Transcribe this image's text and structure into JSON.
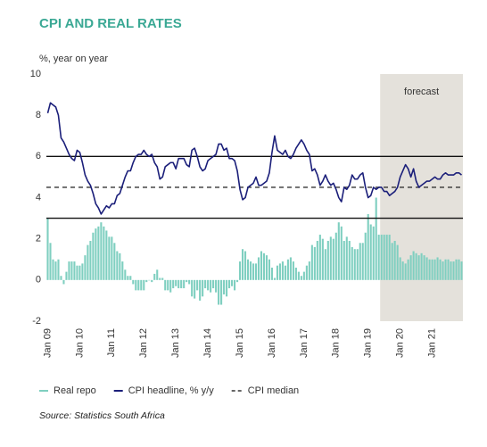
{
  "chart_data": {
    "type": "bar-line",
    "title": "CPI AND REAL RATES",
    "y_label": "%, year on year",
    "source": "Source: Statistics South Africa",
    "ylim": [
      -2,
      10
    ],
    "yticks": [
      -2,
      0,
      2,
      4,
      6,
      8,
      10
    ],
    "categories": [
      "Jan 09",
      null,
      null,
      null,
      null,
      null,
      null,
      null,
      null,
      null,
      null,
      null,
      "Jan 10",
      null,
      null,
      null,
      null,
      null,
      null,
      null,
      null,
      null,
      null,
      null,
      "Jan 11",
      null,
      null,
      null,
      null,
      null,
      null,
      null,
      null,
      null,
      null,
      null,
      "Jan 12",
      null,
      null,
      null,
      null,
      null,
      null,
      null,
      null,
      null,
      null,
      null,
      "Jan 13",
      null,
      null,
      null,
      null,
      null,
      null,
      null,
      null,
      null,
      null,
      null,
      "Jan 14",
      null,
      null,
      null,
      null,
      null,
      null,
      null,
      null,
      null,
      null,
      null,
      "Jan 15",
      null,
      null,
      null,
      null,
      null,
      null,
      null,
      null,
      null,
      null,
      null,
      "Jan 16",
      null,
      null,
      null,
      null,
      null,
      null,
      null,
      null,
      null,
      null,
      null,
      "Jan 17",
      null,
      null,
      null,
      null,
      null,
      null,
      null,
      null,
      null,
      null,
      null,
      "Jan 18",
      null,
      null,
      null,
      null,
      null,
      null,
      null,
      null,
      null,
      null,
      null,
      "Jan 19",
      null,
      null,
      null,
      null,
      null,
      null,
      null,
      null,
      null,
      null,
      null,
      "Jan 20",
      null,
      null,
      null,
      null,
      null,
      null,
      null,
      null,
      null,
      null,
      null,
      "Jan 21",
      null,
      null,
      null,
      null,
      null,
      null,
      null,
      null,
      null,
      null,
      null
    ],
    "series": [
      {
        "name": "Real repo",
        "type": "bar",
        "color": "#7fcfc0",
        "values": [
          3.0,
          1.8,
          1.0,
          0.9,
          1.0,
          0.2,
          -0.2,
          0.4,
          0.9,
          0.9,
          0.9,
          0.7,
          0.7,
          0.8,
          1.2,
          1.7,
          1.9,
          2.3,
          2.5,
          2.6,
          2.8,
          2.6,
          2.4,
          2.1,
          2.1,
          1.8,
          1.4,
          1.3,
          0.9,
          0.5,
          0.2,
          0.2,
          -0.2,
          -0.5,
          -0.5,
          -0.5,
          -0.5,
          -0.1,
          0.0,
          -0.1,
          0.3,
          0.5,
          0.1,
          0.1,
          -0.5,
          -0.5,
          -0.6,
          -0.4,
          -0.3,
          -0.4,
          -0.4,
          -0.4,
          -0.1,
          -0.2,
          -0.8,
          -0.9,
          -0.5,
          -1.0,
          -0.8,
          -0.4,
          -0.5,
          -0.6,
          -0.4,
          -0.6,
          -1.2,
          -1.2,
          -0.7,
          -0.8,
          -0.4,
          -0.3,
          -0.5,
          -0.1,
          0.9,
          1.5,
          1.4,
          1.0,
          0.9,
          0.8,
          0.8,
          1.1,
          1.4,
          1.3,
          1.2,
          1.0,
          0.6,
          0.1,
          0.7,
          0.8,
          0.9,
          0.7,
          1.0,
          1.1,
          0.9,
          0.6,
          0.4,
          0.2,
          0.4,
          0.7,
          0.9,
          1.7,
          1.6,
          1.9,
          2.2,
          2.0,
          1.5,
          1.9,
          2.1,
          2.0,
          2.3,
          2.8,
          2.6,
          1.9,
          2.1,
          1.9,
          1.6,
          1.5,
          1.5,
          1.8,
          1.8,
          2.3,
          3.2,
          2.7,
          2.6,
          4.0,
          2.2,
          2.2,
          2.2,
          2.2,
          2.2,
          1.8,
          1.9,
          1.7,
          1.1,
          0.9,
          0.8,
          1.0,
          1.2,
          1.4,
          1.3,
          1.2,
          1.3,
          1.2,
          1.1,
          1.0,
          1.0,
          1.0,
          1.1,
          1.0,
          0.9,
          1.0,
          1.0,
          0.9,
          0.9,
          1.0,
          1.0,
          0.9
        ]
      },
      {
        "name": "CPI headline, % y/y",
        "type": "line",
        "color": "#1b1f7a",
        "values": [
          8.1,
          8.6,
          8.5,
          8.4,
          8.0,
          6.9,
          6.7,
          6.4,
          6.1,
          5.9,
          5.8,
          6.3,
          6.2,
          5.7,
          5.1,
          4.8,
          4.6,
          4.2,
          3.7,
          3.5,
          3.2,
          3.4,
          3.6,
          3.5,
          3.7,
          3.7,
          4.1,
          4.2,
          4.6,
          5.0,
          5.3,
          5.3,
          5.7,
          6.0,
          6.1,
          6.1,
          6.3,
          6.1,
          6.0,
          6.1,
          5.7,
          5.5,
          4.9,
          5.0,
          5.5,
          5.6,
          5.7,
          5.7,
          5.4,
          5.9,
          5.9,
          5.9,
          5.6,
          5.5,
          6.3,
          6.4,
          6.0,
          5.5,
          5.3,
          5.4,
          5.8,
          5.9,
          6.0,
          6.1,
          6.6,
          6.6,
          6.3,
          6.4,
          5.9,
          5.9,
          5.8,
          5.3,
          4.4,
          3.9,
          4.0,
          4.5,
          4.6,
          4.7,
          5.0,
          4.6,
          4.6,
          4.7,
          4.8,
          5.2,
          6.2,
          7.0,
          6.3,
          6.2,
          6.1,
          6.3,
          6.0,
          5.9,
          6.1,
          6.4,
          6.6,
          6.8,
          6.6,
          6.3,
          6.1,
          5.3,
          5.4,
          5.1,
          4.6,
          4.8,
          5.1,
          4.8,
          4.6,
          4.7,
          4.4,
          4.0,
          3.8,
          4.5,
          4.4,
          4.6,
          5.1,
          4.9,
          4.9,
          5.1,
          5.2,
          4.5,
          4.0,
          4.1,
          4.5,
          4.4,
          4.5,
          4.5,
          4.3,
          4.3,
          4.1,
          4.2,
          4.3,
          4.5,
          5.0,
          5.3,
          5.6,
          5.4,
          5.0,
          5.4,
          4.8,
          4.5,
          4.6,
          4.7,
          4.8,
          4.8,
          4.9,
          5.0,
          4.9,
          4.9,
          5.1,
          5.2,
          5.1,
          5.1,
          5.1,
          5.2,
          5.2,
          5.1
        ]
      }
    ],
    "median": {
      "name": "CPI median",
      "value": 4.5,
      "color": "#333333"
    },
    "reference_lines": [
      3,
      6
    ],
    "forecast": {
      "label": "forecast",
      "start": 125,
      "color": "#e4e1db"
    }
  }
}
